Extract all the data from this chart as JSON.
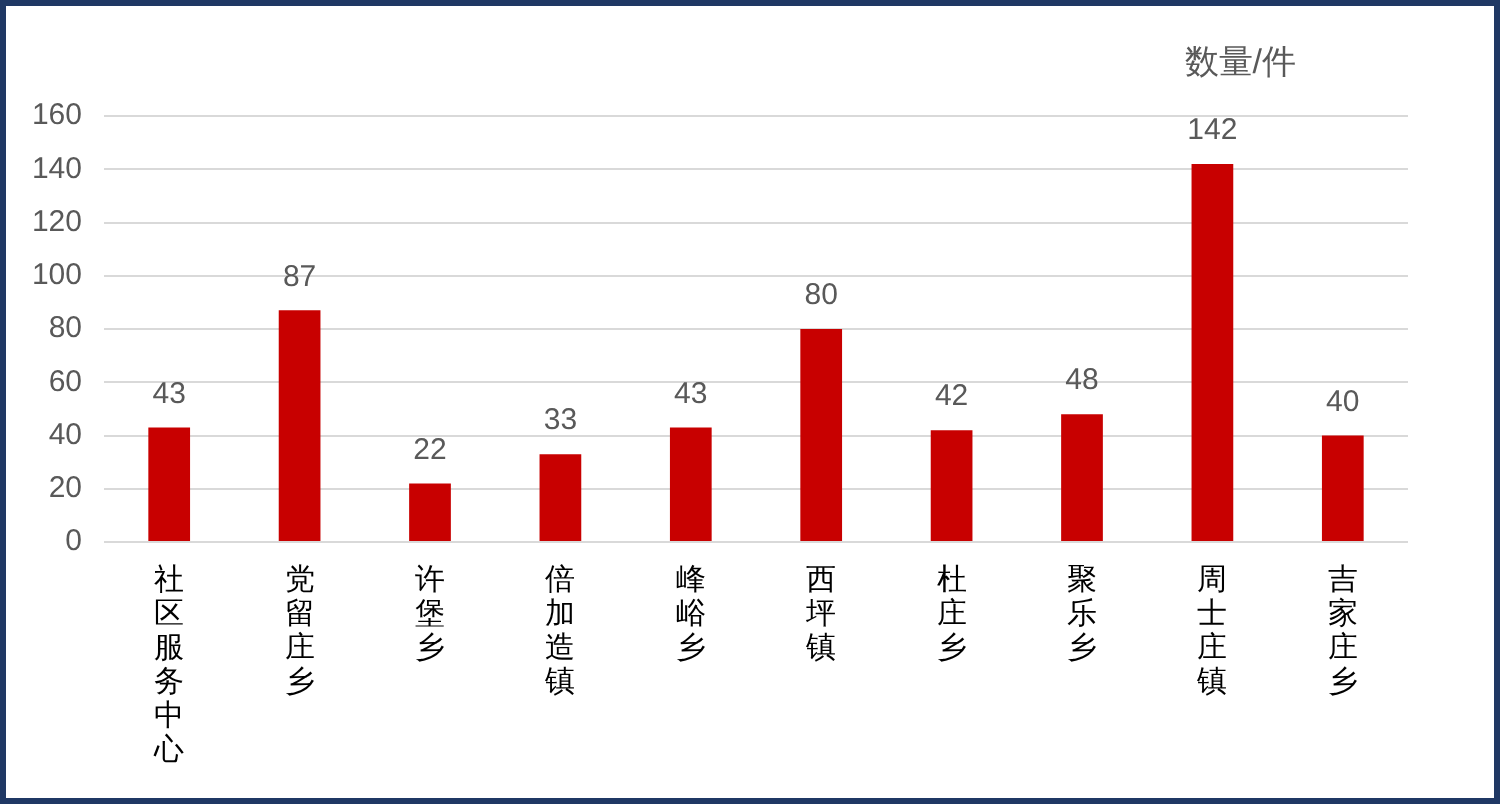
{
  "chart_data": {
    "type": "bar",
    "ylabel": "数量/件",
    "categories": [
      "社区服务中心",
      "党留庄乡",
      "许堡乡",
      "倍加造镇",
      "峰峪乡",
      "西坪镇",
      "杜庄乡",
      "聚乐乡",
      "周士庄镇",
      "吉家庄乡"
    ],
    "values": [
      43,
      87,
      22,
      33,
      43,
      80,
      42,
      48,
      142,
      40
    ],
    "color": "#c80000",
    "ylim": [
      0,
      160
    ],
    "yticks": [
      0,
      20,
      40,
      60,
      80,
      100,
      120,
      140,
      160
    ],
    "grid": "y",
    "data_labels": true
  }
}
